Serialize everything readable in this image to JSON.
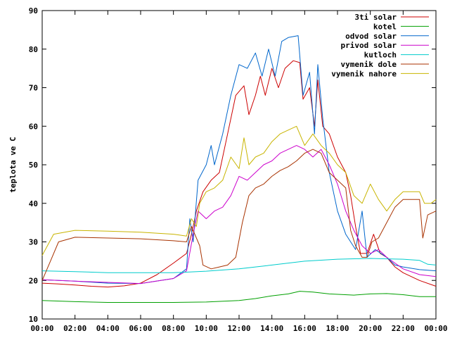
{
  "chart_data": {
    "type": "line",
    "title": "",
    "xlabel": "",
    "ylabel": "teplota ve C",
    "xlim": [
      "00:00",
      "24:00"
    ],
    "ylim": [
      10,
      90
    ],
    "x_ticks": [
      "00:00",
      "02:00",
      "04:00",
      "06:00",
      "08:00",
      "10:00",
      "12:00",
      "14:00",
      "16:00",
      "18:00",
      "20:00",
      "22:00",
      "00:00"
    ],
    "y_ticks": [
      10,
      20,
      30,
      40,
      50,
      60,
      70,
      80,
      90
    ],
    "grid": false,
    "legend_position": "top-right",
    "x_unit": "hour",
    "series": [
      {
        "name": "3ti solar",
        "color": "#cc0000",
        "points": [
          [
            0,
            19.3
          ],
          [
            1,
            19.1
          ],
          [
            2,
            18.8
          ],
          [
            3,
            18.5
          ],
          [
            4,
            18.3
          ],
          [
            5,
            18.6
          ],
          [
            6,
            19.3
          ],
          [
            7,
            21.5
          ],
          [
            8,
            24.5
          ],
          [
            8.8,
            27
          ],
          [
            9.1,
            32
          ],
          [
            9.4,
            38
          ],
          [
            9.8,
            43
          ],
          [
            10.3,
            46
          ],
          [
            10.8,
            48
          ],
          [
            11.3,
            58
          ],
          [
            11.8,
            68
          ],
          [
            12.3,
            70.5
          ],
          [
            12.6,
            63
          ],
          [
            13,
            68
          ],
          [
            13.3,
            73
          ],
          [
            13.6,
            68
          ],
          [
            14,
            75
          ],
          [
            14.4,
            70
          ],
          [
            14.8,
            75
          ],
          [
            15.3,
            77
          ],
          [
            15.7,
            76.5
          ],
          [
            15.9,
            67
          ],
          [
            16.3,
            70
          ],
          [
            16.6,
            60
          ],
          [
            16.8,
            72
          ],
          [
            17.1,
            60
          ],
          [
            17.5,
            58
          ],
          [
            18,
            52
          ],
          [
            18.5,
            48
          ],
          [
            18.8,
            42
          ],
          [
            19.1,
            34
          ],
          [
            19.4,
            27
          ],
          [
            19.8,
            27
          ],
          [
            20.2,
            32
          ],
          [
            20.6,
            27
          ],
          [
            21,
            26
          ],
          [
            21.5,
            23.5
          ],
          [
            22,
            22
          ],
          [
            23,
            20
          ],
          [
            24,
            18.5
          ]
        ]
      },
      {
        "name": "kotel",
        "color": "#00a000",
        "points": [
          [
            0,
            14.8
          ],
          [
            2,
            14.5
          ],
          [
            4,
            14.3
          ],
          [
            6,
            14.3
          ],
          [
            8,
            14.3
          ],
          [
            10,
            14.4
          ],
          [
            12,
            14.8
          ],
          [
            13,
            15.3
          ],
          [
            14,
            16
          ],
          [
            15,
            16.5
          ],
          [
            15.7,
            17.2
          ],
          [
            16.5,
            17
          ],
          [
            17.5,
            16.5
          ],
          [
            19,
            16.2
          ],
          [
            20,
            16.5
          ],
          [
            21,
            16.6
          ],
          [
            22,
            16.3
          ],
          [
            23,
            15.8
          ],
          [
            24,
            15.8
          ]
        ]
      },
      {
        "name": "odvod solar",
        "color": "#0066cc",
        "points": [
          [
            0,
            20.2
          ],
          [
            2,
            19.8
          ],
          [
            4,
            19.3
          ],
          [
            6,
            19.2
          ],
          [
            8,
            20.5
          ],
          [
            8.8,
            23
          ],
          [
            9,
            36
          ],
          [
            9.2,
            30
          ],
          [
            9.5,
            46
          ],
          [
            10,
            50
          ],
          [
            10.3,
            55
          ],
          [
            10.5,
            50
          ],
          [
            11,
            58
          ],
          [
            11.5,
            68
          ],
          [
            12,
            76
          ],
          [
            12.5,
            75
          ],
          [
            13,
            79
          ],
          [
            13.4,
            73
          ],
          [
            13.8,
            80
          ],
          [
            14.2,
            73
          ],
          [
            14.6,
            82
          ],
          [
            15,
            83
          ],
          [
            15.6,
            83.5
          ],
          [
            15.9,
            68
          ],
          [
            16.3,
            74
          ],
          [
            16.6,
            58
          ],
          [
            16.8,
            76
          ],
          [
            17.1,
            62
          ],
          [
            17.5,
            48
          ],
          [
            18,
            38
          ],
          [
            18.5,
            32
          ],
          [
            19.1,
            28
          ],
          [
            19.5,
            38
          ],
          [
            19.8,
            26
          ],
          [
            20.3,
            28
          ],
          [
            21,
            26
          ],
          [
            21.5,
            24
          ],
          [
            22,
            23.5
          ],
          [
            23,
            22.8
          ],
          [
            24,
            22.5
          ]
        ]
      },
      {
        "name": "privod solar",
        "color": "#cc00cc",
        "points": [
          [
            0,
            20.2
          ],
          [
            2,
            19.8
          ],
          [
            4,
            19.5
          ],
          [
            6,
            19.2
          ],
          [
            8,
            20.5
          ],
          [
            8.8,
            22.5
          ],
          [
            9.2,
            32
          ],
          [
            9.5,
            38
          ],
          [
            10,
            36
          ],
          [
            10.5,
            38
          ],
          [
            11,
            39
          ],
          [
            11.5,
            42
          ],
          [
            12,
            47
          ],
          [
            12.5,
            46
          ],
          [
            13,
            48
          ],
          [
            13.5,
            50
          ],
          [
            14,
            51
          ],
          [
            14.5,
            53
          ],
          [
            15,
            54
          ],
          [
            15.5,
            55
          ],
          [
            16,
            54
          ],
          [
            16.5,
            52
          ],
          [
            17,
            54
          ],
          [
            17.5,
            50
          ],
          [
            18,
            45
          ],
          [
            18.5,
            38
          ],
          [
            19,
            33
          ],
          [
            19.5,
            29
          ],
          [
            20,
            27
          ],
          [
            20.5,
            28
          ],
          [
            21,
            26
          ],
          [
            22,
            23
          ],
          [
            23,
            21.5
          ],
          [
            24,
            21
          ]
        ]
      },
      {
        "name": "kutloch",
        "color": "#00cccc",
        "points": [
          [
            0,
            22.5
          ],
          [
            2,
            22.3
          ],
          [
            4,
            22
          ],
          [
            6,
            22
          ],
          [
            8,
            22
          ],
          [
            10,
            22.4
          ],
          [
            12,
            23
          ],
          [
            14,
            24
          ],
          [
            16,
            25
          ],
          [
            18,
            25.5
          ],
          [
            20,
            25.7
          ],
          [
            21,
            25.6
          ],
          [
            22,
            25.5
          ],
          [
            23,
            25.2
          ],
          [
            23.5,
            24.2
          ],
          [
            24,
            24
          ]
        ]
      },
      {
        "name": "vymenik dole",
        "color": "#a83200",
        "points": [
          [
            0,
            20
          ],
          [
            0.5,
            25
          ],
          [
            1,
            30
          ],
          [
            2,
            31.2
          ],
          [
            4,
            31
          ],
          [
            6,
            30.8
          ],
          [
            8,
            30.3
          ],
          [
            8.8,
            30
          ],
          [
            9.1,
            34
          ],
          [
            9.3,
            32
          ],
          [
            9.6,
            29
          ],
          [
            9.8,
            24
          ],
          [
            10.3,
            23
          ],
          [
            10.8,
            23.5
          ],
          [
            11.3,
            24
          ],
          [
            11.8,
            26
          ],
          [
            12.2,
            35
          ],
          [
            12.6,
            42
          ],
          [
            13,
            44
          ],
          [
            13.5,
            45
          ],
          [
            14,
            47
          ],
          [
            14.5,
            48.5
          ],
          [
            15,
            49.5
          ],
          [
            15.5,
            51
          ],
          [
            16,
            53
          ],
          [
            16.5,
            54
          ],
          [
            17,
            53
          ],
          [
            17.5,
            48
          ],
          [
            18,
            46
          ],
          [
            18.5,
            44
          ],
          [
            18.8,
            33
          ],
          [
            19.1,
            29
          ],
          [
            19.5,
            26
          ],
          [
            19.8,
            26
          ],
          [
            20.1,
            30
          ],
          [
            20.5,
            31
          ],
          [
            21,
            35
          ],
          [
            21.5,
            39
          ],
          [
            22,
            41
          ],
          [
            23,
            41
          ],
          [
            23.2,
            31
          ],
          [
            23.5,
            37
          ],
          [
            24,
            38
          ]
        ]
      },
      {
        "name": "vymenik nahore",
        "color": "#c8b400",
        "points": [
          [
            0,
            26.5
          ],
          [
            0.7,
            32
          ],
          [
            2,
            33
          ],
          [
            4,
            32.8
          ],
          [
            6,
            32.5
          ],
          [
            8,
            32
          ],
          [
            8.8,
            31.5
          ],
          [
            9.1,
            36
          ],
          [
            9.4,
            34
          ],
          [
            9.6,
            40
          ],
          [
            10,
            43
          ],
          [
            10.5,
            44
          ],
          [
            11,
            46
          ],
          [
            11.5,
            52
          ],
          [
            12,
            49
          ],
          [
            12.3,
            57
          ],
          [
            12.6,
            50
          ],
          [
            13,
            52
          ],
          [
            13.5,
            53
          ],
          [
            14,
            56
          ],
          [
            14.5,
            58
          ],
          [
            15,
            59
          ],
          [
            15.5,
            60
          ],
          [
            16,
            55
          ],
          [
            16.5,
            58
          ],
          [
            17,
            55
          ],
          [
            17.5,
            53
          ],
          [
            18,
            50
          ],
          [
            18.5,
            48
          ],
          [
            19,
            42
          ],
          [
            19.5,
            40
          ],
          [
            20,
            45
          ],
          [
            20.5,
            41
          ],
          [
            21,
            38
          ],
          [
            21.5,
            41
          ],
          [
            22,
            43
          ],
          [
            23,
            43
          ],
          [
            23.3,
            40
          ],
          [
            23.7,
            40
          ],
          [
            24,
            41
          ]
        ]
      }
    ]
  }
}
